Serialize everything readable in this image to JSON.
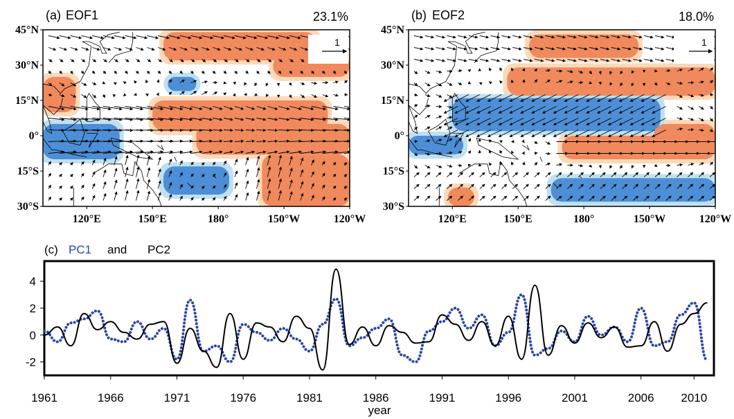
{
  "chart_data": [
    {
      "type": "map",
      "panel_label": "(a)",
      "title": "EOF1",
      "variance": "23.1%",
      "lat_ticks": [
        "45°N",
        "30°N",
        "15°N",
        "0°",
        "15°S",
        "30°S"
      ],
      "lat_values": [
        45,
        30,
        15,
        0,
        -15,
        -30
      ],
      "lon_ticks": [
        "120°E",
        "150°E",
        "180°",
        "150°W",
        "120°W"
      ],
      "lon_values": [
        120,
        150,
        180,
        210,
        240
      ],
      "xlim": [
        100,
        240
      ],
      "ylim": [
        -30,
        45
      ],
      "ref_vector_label": "1",
      "shading": {
        "positive_color": "#f08a5d",
        "positive_light": "#fcd9b8",
        "negative_color": "#4d8fd6",
        "negative_light": "#bfe0f0",
        "positive_regions": [
          {
            "lon": [
              150,
              230
            ],
            "lat": [
              2,
              15
            ]
          },
          {
            "lon": [
              170,
              240
            ],
            "lat": [
              -8,
              5
            ]
          },
          {
            "lon": [
              200,
              240
            ],
            "lat": [
              -30,
              -8
            ]
          },
          {
            "lon": [
              155,
              225
            ],
            "lat": [
              32,
              44
            ]
          },
          {
            "lon": [
              205,
              240
            ],
            "lat": [
              25,
              34
            ]
          },
          {
            "lon": [
              100,
              115
            ],
            "lat": [
              10,
              25
            ]
          }
        ],
        "negative_regions": [
          {
            "lon": [
              100,
              135
            ],
            "lat": [
              -10,
              5
            ]
          },
          {
            "lon": [
              155,
              185
            ],
            "lat": [
              -25,
              -13
            ]
          },
          {
            "lon": [
              157,
              170
            ],
            "lat": [
              19,
              25
            ]
          }
        ]
      }
    },
    {
      "type": "map",
      "panel_label": "(b)",
      "title": "EOF2",
      "variance": "18.0%",
      "lat_ticks": [
        "45°N",
        "30°N",
        "15°N",
        "0°",
        "15°S",
        "30°S"
      ],
      "lat_values": [
        45,
        30,
        15,
        0,
        -15,
        -30
      ],
      "lon_ticks": [
        "120°E",
        "150°E",
        "180°",
        "150°W",
        "120°W"
      ],
      "lon_values": [
        120,
        150,
        180,
        210,
        240
      ],
      "xlim": [
        100,
        240
      ],
      "ylim": [
        -30,
        45
      ],
      "ref_vector_label": "1",
      "shading": {
        "positive_color": "#f08a5d",
        "positive_light": "#fcd9b8",
        "negative_color": "#4d8fd6",
        "negative_light": "#bfe0f0",
        "positive_regions": [
          {
            "lon": [
              145,
              240
            ],
            "lat": [
              17,
              29
            ]
          },
          {
            "lon": [
              155,
              205
            ],
            "lat": [
              33,
              43
            ]
          },
          {
            "lon": [
              170,
              240
            ],
            "lat": [
              -10,
              0
            ]
          },
          {
            "lon": [
              212,
              240
            ],
            "lat": [
              -10,
              5
            ]
          },
          {
            "lon": [
              118,
              130
            ],
            "lat": [
              -30,
              -22
            ]
          }
        ],
        "negative_regions": [
          {
            "lon": [
              120,
              215
            ],
            "lat": [
              2,
              16
            ]
          },
          {
            "lon": [
              165,
              240
            ],
            "lat": [
              -28,
              -18
            ]
          },
          {
            "lon": [
              100,
              125
            ],
            "lat": [
              -8,
              0
            ]
          }
        ]
      }
    },
    {
      "type": "line",
      "title": "(c)",
      "series": [
        {
          "name": "PC1",
          "color": "#2946a8",
          "style": "dotted",
          "x": [
            1961,
            1962,
            1963,
            1964,
            1965,
            1966,
            1967,
            1968,
            1969,
            1970,
            1971,
            1972,
            1973,
            1974,
            1975,
            1976,
            1977,
            1978,
            1979,
            1980,
            1981,
            1982,
            1983,
            1984,
            1985,
            1986,
            1987,
            1988,
            1989,
            1990,
            1991,
            1992,
            1993,
            1994,
            1995,
            1996,
            1997,
            1998,
            1999,
            2000,
            2001,
            2002,
            2003,
            2004,
            2005,
            2006,
            2007,
            2008,
            2009,
            2010,
            2011
          ],
          "values": [
            0.3,
            -0.5,
            0.9,
            1.2,
            1.8,
            -0.3,
            -0.5,
            1.0,
            -0.3,
            0.5,
            -1.8,
            2.6,
            -1.2,
            -0.8,
            -2.0,
            0.8,
            0.2,
            -0.4,
            0.5,
            -0.3,
            -1.2,
            0.8,
            2.7,
            -0.8,
            -0.2,
            0.5,
            1.2,
            -1.5,
            -2.0,
            0.3,
            1.0,
            2.0,
            0.5,
            1.5,
            -0.8,
            0.2,
            3.0,
            -1.5,
            -1.0,
            0.3,
            -0.5,
            1.4,
            0.0,
            0.6,
            -0.5,
            2.0,
            -0.8,
            -0.5,
            1.5,
            2.4,
            -1.9
          ]
        },
        {
          "name": "PC2",
          "color": "#000000",
          "style": "solid",
          "x": [
            1961,
            1962,
            1963,
            1964,
            1965,
            1966,
            1967,
            1968,
            1969,
            1970,
            1971,
            1972,
            1973,
            1974,
            1975,
            1976,
            1977,
            1978,
            1979,
            1980,
            1981,
            1982,
            1983,
            1984,
            1985,
            1986,
            1987,
            1988,
            1989,
            1990,
            1991,
            1992,
            1993,
            1994,
            1995,
            1996,
            1997,
            1998,
            1999,
            2000,
            2001,
            2002,
            2003,
            2004,
            2005,
            2006,
            2007,
            2008,
            2009,
            2010,
            2011
          ],
          "values": [
            0.0,
            0.6,
            -0.8,
            1.6,
            0.4,
            1.0,
            0.2,
            -0.3,
            0.8,
            1.0,
            -2.1,
            0.5,
            -1.2,
            -2.4,
            1.6,
            -1.8,
            0.9,
            0.6,
            -0.5,
            1.4,
            0.5,
            -2.6,
            4.9,
            -0.7,
            0.6,
            -0.8,
            0.7,
            0.2,
            -0.6,
            -0.5,
            1.5,
            0.8,
            -0.4,
            1.0,
            -0.8,
            1.4,
            -1.8,
            3.7,
            -1.5,
            0.7,
            -0.6,
            0.9,
            -0.2,
            0.6,
            -0.9,
            -0.8,
            1.0,
            -1.2,
            0.8,
            1.6,
            2.4
          ]
        }
      ],
      "xlabel": "year",
      "xlim": [
        1961,
        2011.5
      ],
      "ylim": [
        -3,
        5.5
      ],
      "x_ticks": [
        "1961",
        "1966",
        "1971",
        "1976",
        "1981",
        "1986",
        "1991",
        "1996",
        "2001",
        "2006",
        "2010"
      ],
      "x_tick_values": [
        1961,
        1966,
        1971,
        1976,
        1981,
        1986,
        1991,
        1996,
        2001,
        2006,
        2010
      ],
      "y_ticks": [
        "4",
        "2",
        "0",
        "-2"
      ],
      "y_tick_values": [
        4,
        2,
        0,
        -2
      ],
      "legend_text_and": "and"
    }
  ]
}
